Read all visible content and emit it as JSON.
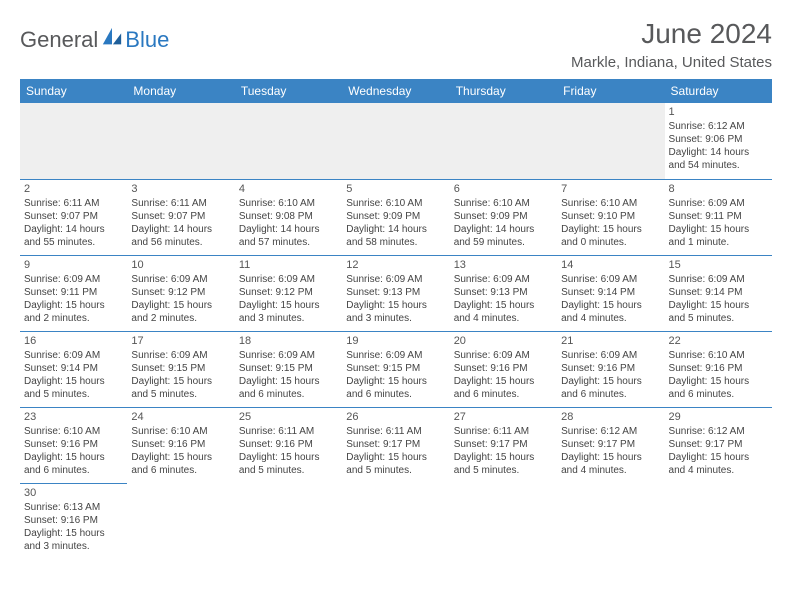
{
  "logo": {
    "general": "General",
    "blue": "Blue"
  },
  "title": "June 2024",
  "location": "Markle, Indiana, United States",
  "header_bg": "#3b84c4",
  "weekdays": [
    "Sunday",
    "Monday",
    "Tuesday",
    "Wednesday",
    "Thursday",
    "Friday",
    "Saturday"
  ],
  "weeks": [
    [
      null,
      null,
      null,
      null,
      null,
      null,
      {
        "n": "1",
        "sr": "Sunrise: 6:12 AM",
        "ss": "Sunset: 9:06 PM",
        "dl": "Daylight: 14 hours and 54 minutes."
      }
    ],
    [
      {
        "n": "2",
        "sr": "Sunrise: 6:11 AM",
        "ss": "Sunset: 9:07 PM",
        "dl": "Daylight: 14 hours and 55 minutes."
      },
      {
        "n": "3",
        "sr": "Sunrise: 6:11 AM",
        "ss": "Sunset: 9:07 PM",
        "dl": "Daylight: 14 hours and 56 minutes."
      },
      {
        "n": "4",
        "sr": "Sunrise: 6:10 AM",
        "ss": "Sunset: 9:08 PM",
        "dl": "Daylight: 14 hours and 57 minutes."
      },
      {
        "n": "5",
        "sr": "Sunrise: 6:10 AM",
        "ss": "Sunset: 9:09 PM",
        "dl": "Daylight: 14 hours and 58 minutes."
      },
      {
        "n": "6",
        "sr": "Sunrise: 6:10 AM",
        "ss": "Sunset: 9:09 PM",
        "dl": "Daylight: 14 hours and 59 minutes."
      },
      {
        "n": "7",
        "sr": "Sunrise: 6:10 AM",
        "ss": "Sunset: 9:10 PM",
        "dl": "Daylight: 15 hours and 0 minutes."
      },
      {
        "n": "8",
        "sr": "Sunrise: 6:09 AM",
        "ss": "Sunset: 9:11 PM",
        "dl": "Daylight: 15 hours and 1 minute."
      }
    ],
    [
      {
        "n": "9",
        "sr": "Sunrise: 6:09 AM",
        "ss": "Sunset: 9:11 PM",
        "dl": "Daylight: 15 hours and 2 minutes."
      },
      {
        "n": "10",
        "sr": "Sunrise: 6:09 AM",
        "ss": "Sunset: 9:12 PM",
        "dl": "Daylight: 15 hours and 2 minutes."
      },
      {
        "n": "11",
        "sr": "Sunrise: 6:09 AM",
        "ss": "Sunset: 9:12 PM",
        "dl": "Daylight: 15 hours and 3 minutes."
      },
      {
        "n": "12",
        "sr": "Sunrise: 6:09 AM",
        "ss": "Sunset: 9:13 PM",
        "dl": "Daylight: 15 hours and 3 minutes."
      },
      {
        "n": "13",
        "sr": "Sunrise: 6:09 AM",
        "ss": "Sunset: 9:13 PM",
        "dl": "Daylight: 15 hours and 4 minutes."
      },
      {
        "n": "14",
        "sr": "Sunrise: 6:09 AM",
        "ss": "Sunset: 9:14 PM",
        "dl": "Daylight: 15 hours and 4 minutes."
      },
      {
        "n": "15",
        "sr": "Sunrise: 6:09 AM",
        "ss": "Sunset: 9:14 PM",
        "dl": "Daylight: 15 hours and 5 minutes."
      }
    ],
    [
      {
        "n": "16",
        "sr": "Sunrise: 6:09 AM",
        "ss": "Sunset: 9:14 PM",
        "dl": "Daylight: 15 hours and 5 minutes."
      },
      {
        "n": "17",
        "sr": "Sunrise: 6:09 AM",
        "ss": "Sunset: 9:15 PM",
        "dl": "Daylight: 15 hours and 5 minutes."
      },
      {
        "n": "18",
        "sr": "Sunrise: 6:09 AM",
        "ss": "Sunset: 9:15 PM",
        "dl": "Daylight: 15 hours and 6 minutes."
      },
      {
        "n": "19",
        "sr": "Sunrise: 6:09 AM",
        "ss": "Sunset: 9:15 PM",
        "dl": "Daylight: 15 hours and 6 minutes."
      },
      {
        "n": "20",
        "sr": "Sunrise: 6:09 AM",
        "ss": "Sunset: 9:16 PM",
        "dl": "Daylight: 15 hours and 6 minutes."
      },
      {
        "n": "21",
        "sr": "Sunrise: 6:09 AM",
        "ss": "Sunset: 9:16 PM",
        "dl": "Daylight: 15 hours and 6 minutes."
      },
      {
        "n": "22",
        "sr": "Sunrise: 6:10 AM",
        "ss": "Sunset: 9:16 PM",
        "dl": "Daylight: 15 hours and 6 minutes."
      }
    ],
    [
      {
        "n": "23",
        "sr": "Sunrise: 6:10 AM",
        "ss": "Sunset: 9:16 PM",
        "dl": "Daylight: 15 hours and 6 minutes."
      },
      {
        "n": "24",
        "sr": "Sunrise: 6:10 AM",
        "ss": "Sunset: 9:16 PM",
        "dl": "Daylight: 15 hours and 6 minutes."
      },
      {
        "n": "25",
        "sr": "Sunrise: 6:11 AM",
        "ss": "Sunset: 9:16 PM",
        "dl": "Daylight: 15 hours and 5 minutes."
      },
      {
        "n": "26",
        "sr": "Sunrise: 6:11 AM",
        "ss": "Sunset: 9:17 PM",
        "dl": "Daylight: 15 hours and 5 minutes."
      },
      {
        "n": "27",
        "sr": "Sunrise: 6:11 AM",
        "ss": "Sunset: 9:17 PM",
        "dl": "Daylight: 15 hours and 5 minutes."
      },
      {
        "n": "28",
        "sr": "Sunrise: 6:12 AM",
        "ss": "Sunset: 9:17 PM",
        "dl": "Daylight: 15 hours and 4 minutes."
      },
      {
        "n": "29",
        "sr": "Sunrise: 6:12 AM",
        "ss": "Sunset: 9:17 PM",
        "dl": "Daylight: 15 hours and 4 minutes."
      }
    ],
    [
      {
        "n": "30",
        "sr": "Sunrise: 6:13 AM",
        "ss": "Sunset: 9:16 PM",
        "dl": "Daylight: 15 hours and 3 minutes."
      },
      null,
      null,
      null,
      null,
      null,
      null
    ]
  ]
}
